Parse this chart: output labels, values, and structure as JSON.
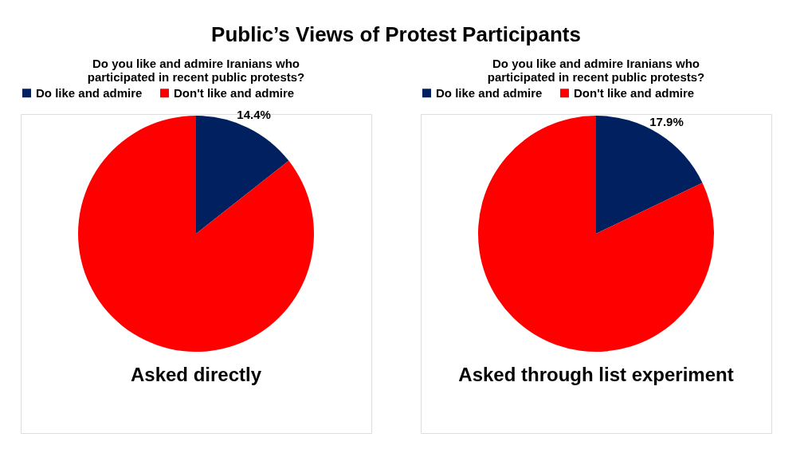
{
  "chart_data": [
    {
      "type": "pie",
      "title": "Public’s Views of Protest Participants",
      "subtitle": "Do you like and admire Iranians who participated in recent public protests?",
      "categories": [
        "Do like and admire",
        "Don't like and admire"
      ],
      "values": [
        14.4,
        85.6
      ],
      "colors": [
        "#002060",
        "#ff0000"
      ],
      "value_labels": [
        "14.4%",
        null
      ],
      "legend": "top",
      "annotations": [
        "Asked directly"
      ]
    },
    {
      "type": "pie",
      "subtitle": "Do you like and admire Iranians who participated in recent public protests?",
      "categories": [
        "Do like and admire",
        "Don't like and admire"
      ],
      "values": [
        17.9,
        82.1
      ],
      "colors": [
        "#002060",
        "#ff0000"
      ],
      "value_labels": [
        "17.9%",
        null
      ],
      "legend": "top",
      "annotations": [
        "Asked through list experiment"
      ]
    }
  ]
}
